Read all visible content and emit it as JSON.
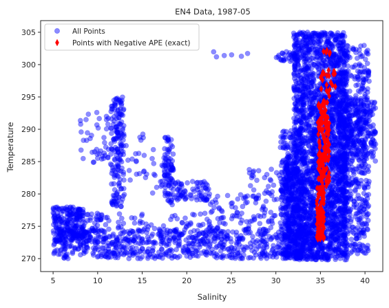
{
  "chart_data": {
    "type": "scatter",
    "title": "EN4 Data, 1987-05",
    "xlabel": "Salinity",
    "ylabel": "Temperature",
    "xlim": [
      3.6,
      42.0
    ],
    "ylim": [
      268.0,
      306.8
    ],
    "xticks": [
      5,
      10,
      15,
      20,
      25,
      30,
      35,
      40
    ],
    "yticks": [
      270,
      275,
      280,
      285,
      290,
      295,
      300,
      305
    ],
    "grid": false,
    "legend_position": "top-left",
    "series": [
      {
        "name": "All Points",
        "marker": "circle",
        "color": "#0000ff",
        "opacity": 0.45,
        "clusters": [
          {
            "x": [
              5.0,
              8.5
            ],
            "y": [
              272.5,
              278.0
            ],
            "n": 220
          },
          {
            "x": [
              7.5,
              10.5
            ],
            "y": [
              273.0,
              278.0
            ],
            "n": 30
          },
          {
            "x": [
              8.0,
              11.5
            ],
            "y": [
              284.0,
              293.0
            ],
            "n": 45
          },
          {
            "x": [
              11.5,
              13.0
            ],
            "y": [
              278.0,
              295.0
            ],
            "n": 170
          },
          {
            "x": [
              13.0,
              15.5
            ],
            "y": [
              282.0,
              290.0
            ],
            "n": 20
          },
          {
            "x": [
              8.0,
              24.0
            ],
            "y": [
              272.0,
              277.0
            ],
            "n": 140
          },
          {
            "x": [
              16.0,
              18.5
            ],
            "y": [
              280.0,
              287.0
            ],
            "n": 25
          },
          {
            "x": [
              17.5,
              18.5
            ],
            "y": [
              278.0,
              289.0
            ],
            "n": 80
          },
          {
            "x": [
              18.5,
              22.5
            ],
            "y": [
              279.0,
              282.0
            ],
            "n": 70
          },
          {
            "x": [
              5.0,
              34.0
            ],
            "y": [
              270.0,
              274.5
            ],
            "n": 650
          },
          {
            "x": [
              22.0,
              30.0
            ],
            "y": [
              274.0,
              280.0
            ],
            "n": 90
          },
          {
            "x": [
              27.0,
              33.0
            ],
            "y": [
              279.0,
              284.0
            ],
            "n": 50
          },
          {
            "x": [
              30.0,
              32.5
            ],
            "y": [
              300.5,
              302.0
            ],
            "n": 35
          },
          {
            "x": [
              23.0,
              27.0
            ],
            "y": [
              301.0,
              302.0
            ],
            "n": 6
          },
          {
            "x": [
              30.5,
              33.0
            ],
            "y": [
              270.0,
              290.0
            ],
            "n": 300
          },
          {
            "x": [
              31.0,
              38.0
            ],
            "y": [
              269.8,
              285.0
            ],
            "n": 1300
          },
          {
            "x": [
              32.0,
              38.0
            ],
            "y": [
              285.0,
              305.0
            ],
            "n": 1300
          },
          {
            "x": [
              37.0,
              40.5
            ],
            "y": [
              270.5,
              303.0
            ],
            "n": 550
          },
          {
            "x": [
              37.5,
              41.2
            ],
            "y": [
              285.0,
              295.0
            ],
            "n": 220
          }
        ]
      },
      {
        "name": "Points with Negative APE (exact)",
        "marker": "thin_diamond",
        "color": "#ff0000",
        "opacity": 1.0,
        "clusters": [
          {
            "x": [
              34.6,
              35.4
            ],
            "y": [
              273.0,
              281.0
            ],
            "n": 90
          },
          {
            "x": [
              34.7,
              36.0
            ],
            "y": [
              281.0,
              294.0
            ],
            "n": 130
          },
          {
            "x": [
              35.0,
              36.8
            ],
            "y": [
              294.0,
              299.0
            ],
            "n": 22
          },
          {
            "x": [
              35.3,
              36.2
            ],
            "y": [
              299.0,
              302.5
            ],
            "n": 6
          }
        ]
      }
    ]
  }
}
